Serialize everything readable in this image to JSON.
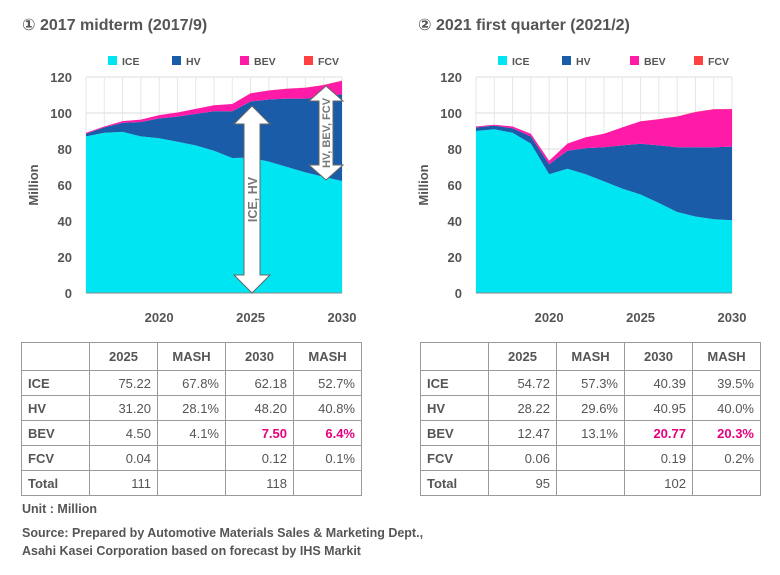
{
  "colors": {
    "ICE": "#00e5f2",
    "HV": "#1a5ca8",
    "BEV": "#ff1aa8",
    "FCV": "#ff4040",
    "highlight": "#e6007e"
  },
  "chart_data": [
    {
      "type": "area",
      "title": "① 2017 midterm (2017/9)",
      "ylabel": "Million",
      "ylim": [
        0,
        120
      ],
      "yticks": [
        0,
        20,
        40,
        60,
        80,
        100,
        120
      ],
      "xlim": [
        2016,
        2030
      ],
      "xticks": [
        2020,
        2025,
        2030
      ],
      "legend": [
        "ICE",
        "HV",
        "BEV",
        "FCV"
      ],
      "legend_position": "top",
      "grid": true,
      "arrows": [
        "ICE, HV",
        "HV, BEV, FCV"
      ],
      "x": [
        2016,
        2017,
        2018,
        2019,
        2020,
        2021,
        2022,
        2023,
        2024,
        2025,
        2026,
        2027,
        2028,
        2029,
        2030
      ],
      "series": [
        {
          "name": "ICE",
          "values": [
            87,
            89,
            89.5,
            87,
            86,
            84,
            82,
            79,
            75,
            75.2,
            73,
            70,
            67,
            64.5,
            62.2
          ]
        },
        {
          "name": "HV",
          "values": [
            1.5,
            3,
            5,
            8,
            11,
            14,
            17.5,
            22,
            26,
            31.2,
            34.5,
            38,
            41,
            44.5,
            48.2
          ]
        },
        {
          "name": "BEV",
          "values": [
            0.5,
            0.5,
            1,
            1.3,
            1.8,
            2.3,
            2.8,
            3.3,
            4,
            4.5,
            5,
            5.5,
            6,
            6.5,
            7.5
          ]
        },
        {
          "name": "FCV",
          "values": [
            0,
            0,
            0,
            0,
            0,
            0,
            0,
            0,
            0,
            0.04,
            0.05,
            0.06,
            0.08,
            0.1,
            0.12
          ]
        }
      ]
    },
    {
      "type": "area",
      "title": "② 2021 first quarter (2021/2)",
      "ylabel": "Million",
      "ylim": [
        0,
        120
      ],
      "yticks": [
        0,
        20,
        40,
        60,
        80,
        100,
        120
      ],
      "xlim": [
        2016,
        2030
      ],
      "xticks": [
        2020,
        2025,
        2030
      ],
      "legend": [
        "ICE",
        "HV",
        "BEV",
        "FCV"
      ],
      "legend_position": "top",
      "grid": true,
      "x": [
        2016,
        2017,
        2018,
        2019,
        2020,
        2021,
        2022,
        2023,
        2024,
        2025,
        2026,
        2027,
        2028,
        2029,
        2030
      ],
      "series": [
        {
          "name": "ICE",
          "values": [
            90,
            91,
            89,
            83,
            66,
            69,
            66,
            62,
            58,
            54.7,
            50,
            45,
            42.5,
            41,
            40.4
          ]
        },
        {
          "name": "HV",
          "values": [
            2,
            2,
            2.5,
            4,
            5.5,
            10,
            14.5,
            19,
            24,
            28.2,
            32,
            36,
            38.5,
            40,
            40.95
          ]
        },
        {
          "name": "BEV",
          "values": [
            0.5,
            0.5,
            1,
            1.5,
            2,
            4,
            6,
            7.5,
            10,
            12.47,
            14.5,
            17,
            19.5,
            21,
            20.77
          ]
        },
        {
          "name": "FCV",
          "values": [
            0,
            0,
            0,
            0,
            0,
            0,
            0,
            0,
            0,
            0.06,
            0.08,
            0.1,
            0.12,
            0.15,
            0.19
          ]
        }
      ]
    }
  ],
  "tables": [
    {
      "headers": [
        "",
        "2025",
        "MASH",
        "2030",
        "MASH"
      ],
      "rows": [
        [
          "ICE",
          "75.22",
          "67.8%",
          "62.18",
          "52.7%"
        ],
        [
          "HV",
          "31.20",
          "28.1%",
          "48.20",
          "40.8%"
        ],
        [
          "BEV",
          "4.50",
          "4.1%",
          "7.50",
          "6.4%"
        ],
        [
          "FCV",
          "0.04",
          "",
          "0.12",
          "0.1%"
        ],
        [
          "Total",
          "111",
          "",
          "118",
          ""
        ]
      ]
    },
    {
      "headers": [
        "",
        "2025",
        "MASH",
        "2030",
        "MASH"
      ],
      "rows": [
        [
          "ICE",
          "54.72",
          "57.3%",
          "40.39",
          "39.5%"
        ],
        [
          "HV",
          "28.22",
          "29.6%",
          "40.95",
          "40.0%"
        ],
        [
          "BEV",
          "12.47",
          "13.1%",
          "20.77",
          "20.3%"
        ],
        [
          "FCV",
          "0.06",
          "",
          "0.19",
          "0.2%"
        ],
        [
          "Total",
          "95",
          "",
          "102",
          ""
        ]
      ]
    }
  ],
  "notes": {
    "unit": "Unit : Million",
    "source1": "Source: Prepared by Automotive Materials Sales & Marketing Dept.,",
    "source2": "Asahi Kasei Corporation based on forecast by IHS Markit"
  }
}
